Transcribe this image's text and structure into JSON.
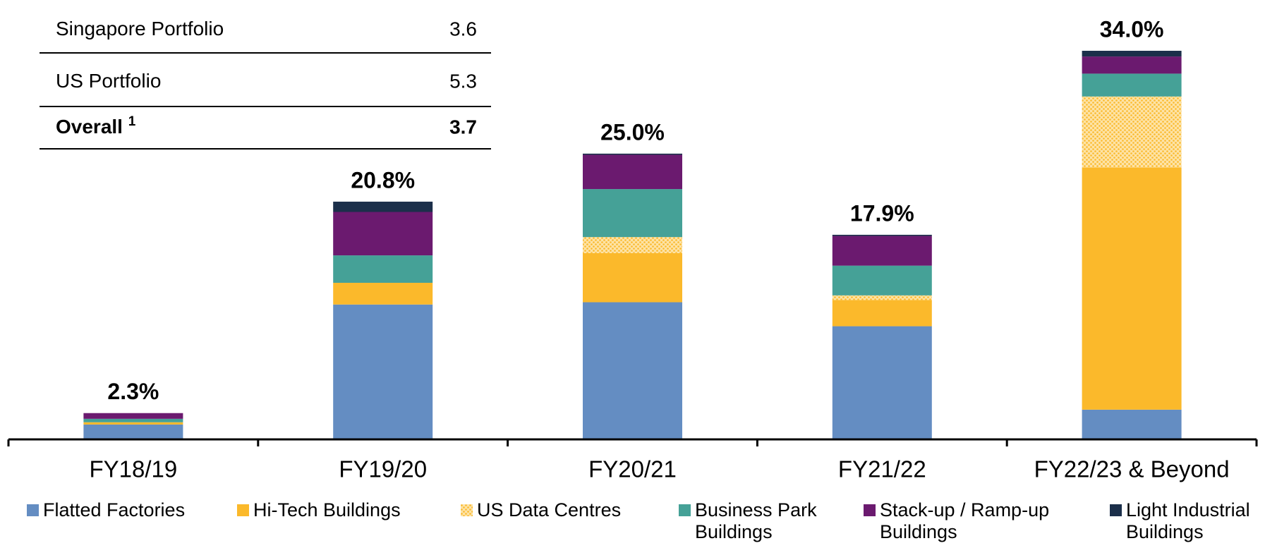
{
  "chart_data": {
    "type": "stacked-bar",
    "categories": [
      "FY18/19",
      "FY19/20",
      "FY20/21",
      "FY21/22",
      "FY22/23 & Beyond"
    ],
    "series": [
      {
        "name": "Flatted Factories",
        "color": "#648dc2",
        "values": [
          1.3,
          11.8,
          12.0,
          9.9,
          2.6
        ]
      },
      {
        "name": "Hi-Tech Buildings",
        "color": "#fbb92b",
        "values": [
          0.2,
          1.9,
          4.3,
          2.3,
          21.2
        ]
      },
      {
        "name": "US Data Centres",
        "color": "#fbc94f",
        "pattern": "dots",
        "values": [
          0,
          0,
          1.4,
          0.4,
          6.2
        ]
      },
      {
        "name": "Business Park Buildings",
        "color": "#45a197",
        "values": [
          0.3,
          2.4,
          4.2,
          2.6,
          2.0
        ]
      },
      {
        "name": "Stack-up / Ramp-up Buildings",
        "color": "#6b1a6f",
        "values": [
          0.5,
          3.8,
          3.0,
          2.6,
          1.5
        ]
      },
      {
        "name": "Light Industrial Buildings",
        "color": "#1b2f4a",
        "values": [
          0,
          0.9,
          0.1,
          0.1,
          0.5
        ]
      }
    ],
    "totals": [
      2.3,
      20.8,
      25.0,
      17.9,
      34.0
    ],
    "total_labels": [
      "2.3%",
      "20.8%",
      "25.0%",
      "17.9%",
      "34.0%"
    ]
  },
  "table": {
    "rows": [
      {
        "label": "Singapore Portfolio",
        "value": "3.6"
      },
      {
        "label": "US Portfolio",
        "value": "5.3"
      },
      {
        "label": "Overall",
        "note": "1",
        "value": "3.7",
        "bold": true
      }
    ]
  }
}
